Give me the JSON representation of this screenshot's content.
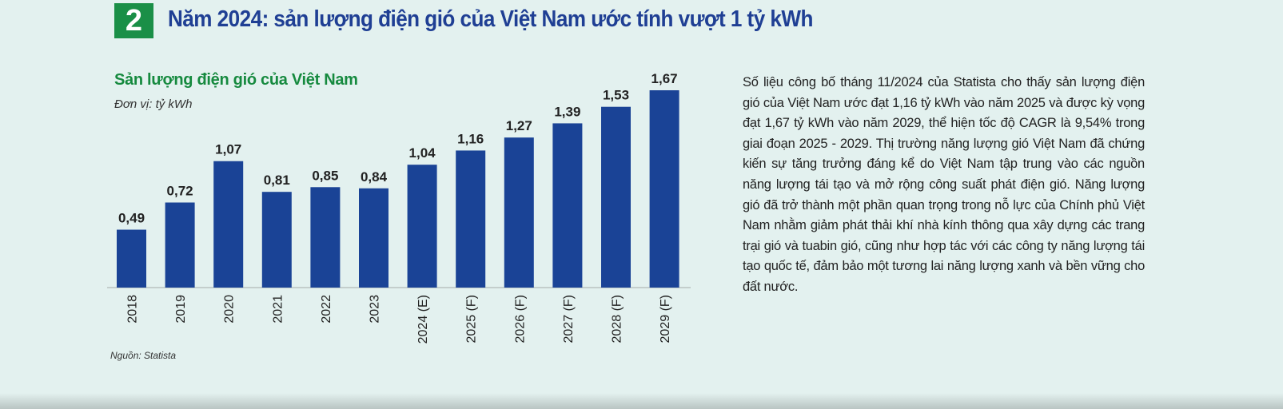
{
  "badge_number": "2",
  "headline": "Năm 2024: sản lượng điện gió của Việt Nam ước tính vượt 1 tỷ kWh",
  "colors": {
    "badge": "#1a8f47",
    "headline": "#1f3f94",
    "chart_title": "#168a3f",
    "bar": "#1a4396",
    "background": "#e3f1ef"
  },
  "chart_data": {
    "type": "bar",
    "title": "Sản lượng điện gió của Việt Nam",
    "unit": "Đơn vị: tỷ kWh",
    "categories": [
      "2018",
      "2019",
      "2020",
      "2021",
      "2022",
      "2023",
      "2024 (E)",
      "2025 (F)",
      "2026 (F)",
      "2027 (F)",
      "2028 (F)",
      "2029 (F)"
    ],
    "values": [
      0.49,
      0.72,
      1.07,
      0.81,
      0.85,
      0.84,
      1.04,
      1.16,
      1.27,
      1.39,
      1.53,
      1.67
    ],
    "value_labels": [
      "0,49",
      "0,72",
      "1,07",
      "0,81",
      "0,85",
      "0,84",
      "1,04",
      "1,16",
      "1,27",
      "1,39",
      "1,53",
      "1,67"
    ],
    "ylim": [
      0,
      1.67
    ],
    "grid": false,
    "legend": "none",
    "source": "Nguồn: Statista"
  },
  "article": {
    "paragraph": "Số liệu công bố tháng 11/2024 của Statista cho thấy sản lượng điện gió của Việt Nam ước đạt 1,16 tỷ kWh vào năm 2025 và được kỳ vọng đạt 1,67 tỷ kWh vào năm 2029, thể hiện tốc độ CAGR là 9,54% trong giai đoạn 2025 - 2029. Thị trường năng lượng gió Việt Nam đã chứng kiến sự tăng trưởng đáng kể do Việt Nam tập trung vào các nguồn năng lượng tái tạo và mở rộng công suất phát điện gió. Năng lượng gió đã trở thành một phần quan trọng trong nỗ lực của Chính phủ Việt Nam nhằm giảm phát thải khí nhà kính thông qua xây dựng các trang trại gió và tuabin gió, cũng như hợp tác với các công ty năng lượng tái tạo quốc tế, đảm bảo một tương lai năng lượng xanh và bền vững cho đất nước."
  }
}
